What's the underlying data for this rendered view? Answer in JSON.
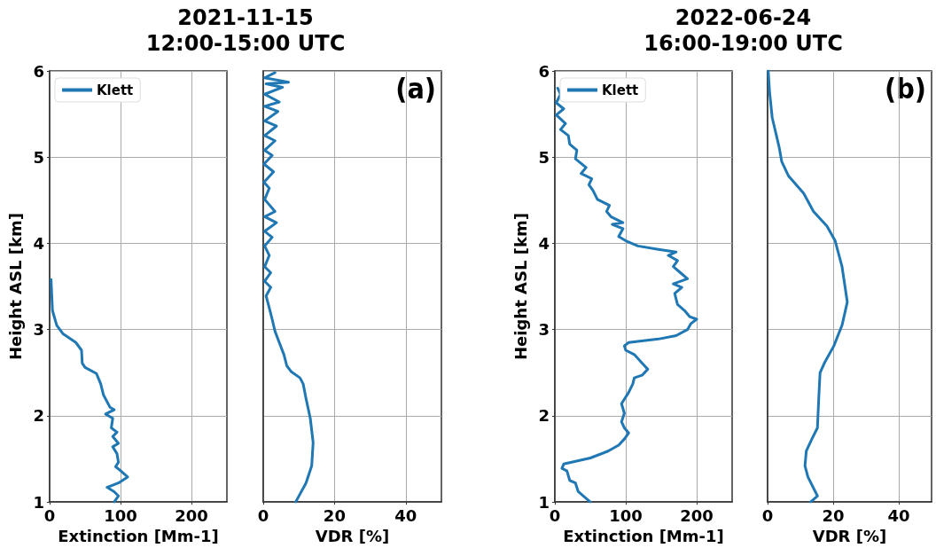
{
  "chart_data": [
    {
      "type": "line",
      "title": "2021-11-15\n12:00-15:00 UTC",
      "xlabel": "Extinction [Mm-1]",
      "ylabel": "Height ASL [km]",
      "xlim": [
        0,
        250
      ],
      "xticks": [
        0,
        100,
        200
      ],
      "ylim": [
        1,
        6
      ],
      "yticks": [
        1,
        2,
        3,
        4,
        5,
        6
      ],
      "grid": true,
      "legend": "top left",
      "series": [
        {
          "name": "Klett",
          "color": "#1f77b4",
          "x": [
            91,
            97,
            91,
            81,
            97,
            110,
            99,
            93,
            97,
            95,
            89,
            97,
            89,
            95,
            87,
            89,
            79,
            91,
            85,
            76,
            72,
            66,
            50,
            46,
            45,
            37,
            19,
            10,
            4,
            2
          ],
          "values": [
            1.0,
            1.07,
            1.12,
            1.17,
            1.22,
            1.29,
            1.37,
            1.41,
            1.46,
            1.56,
            1.64,
            1.68,
            1.76,
            1.81,
            1.86,
            1.97,
            2.02,
            2.07,
            2.1,
            2.24,
            2.37,
            2.49,
            2.56,
            2.61,
            2.76,
            2.85,
            2.95,
            3.05,
            3.22,
            3.58
          ]
        }
      ]
    },
    {
      "type": "line",
      "xlabel": "VDR [%]",
      "xlim": [
        0,
        50
      ],
      "xticks": [
        0,
        20,
        40
      ],
      "ylim": [
        1,
        6
      ],
      "yticks": [
        1,
        2,
        3,
        4,
        5,
        6
      ],
      "grid": true,
      "tick_labels": "x",
      "annotations": [
        "(a)"
      ],
      "series": [
        {
          "color": "#1f77b4",
          "x": [
            9.1,
            12,
            13.6,
            14,
            13.2,
            12,
            11.2,
            10.3,
            7.9,
            6.6,
            5.8,
            4.5,
            3.3,
            2.5,
            1.7,
            0.8,
            2.1,
            0.4,
            2.1,
            0.4,
            1.7,
            0.4,
            2.5,
            0.4,
            3.7,
            0.4,
            3.3,
            0.4,
            1.7,
            0.2,
            2.9,
            0.2,
            2.5,
            0.4,
            3.3,
            0.4,
            3.7,
            0.4,
            4.1,
            0.4,
            4.5,
            0.4,
            5.4,
            0.8,
            7.1,
            0.4,
            3.3
          ],
          "values": [
            1.0,
            1.22,
            1.42,
            1.69,
            1.97,
            2.2,
            2.37,
            2.44,
            2.51,
            2.58,
            2.71,
            2.85,
            2.98,
            3.12,
            3.25,
            3.39,
            3.49,
            3.56,
            3.66,
            3.73,
            3.86,
            3.97,
            4.07,
            4.14,
            4.24,
            4.31,
            4.37,
            4.51,
            4.64,
            4.71,
            4.83,
            4.92,
            5.02,
            5.08,
            5.19,
            5.25,
            5.36,
            5.42,
            5.53,
            5.59,
            5.64,
            5.73,
            5.81,
            5.85,
            5.87,
            5.92,
            5.98
          ]
        }
      ]
    },
    {
      "type": "line",
      "title": "2022-06-24\n16:00-19:00 UTC",
      "xlabel": "Extinction [Mm-1]",
      "ylabel": "Height ASL [km]",
      "xlim": [
        0,
        250
      ],
      "xticks": [
        0,
        100,
        200
      ],
      "ylim": [
        1,
        6
      ],
      "yticks": [
        1,
        2,
        3,
        4,
        5,
        6
      ],
      "grid": true,
      "legend": "top left",
      "series": [
        {
          "name": "Klett",
          "color": "#1f77b4",
          "x": [
            50,
            33,
            29,
            21,
            17,
            10,
            12.5,
            50,
            75,
            90,
            98,
            104,
            98,
            94,
            98,
            94,
            104,
            110,
            112,
            123,
            131,
            123,
            112,
            100,
            98,
            104,
            146,
            171,
            187,
            192,
            200,
            190,
            183,
            173,
            169,
            179,
            167,
            187,
            177,
            167,
            173,
            160,
            171,
            146,
            117,
            100,
            90,
            96,
            81,
            96,
            79,
            73,
            77,
            60,
            54,
            48,
            52,
            37,
            44,
            29,
            31,
            21,
            19,
            8,
            15,
            2,
            12.5,
            2,
            8,
            4
          ],
          "values": [
            1.0,
            1.12,
            1.22,
            1.25,
            1.36,
            1.39,
            1.44,
            1.51,
            1.59,
            1.66,
            1.73,
            1.8,
            1.86,
            1.93,
            2.03,
            2.14,
            2.27,
            2.37,
            2.44,
            2.47,
            2.54,
            2.61,
            2.71,
            2.76,
            2.81,
            2.85,
            2.89,
            2.93,
            3.0,
            3.07,
            3.12,
            3.15,
            3.22,
            3.29,
            3.42,
            3.49,
            3.53,
            3.59,
            3.66,
            3.73,
            3.8,
            3.86,
            3.9,
            3.93,
            3.97,
            4.03,
            4.08,
            4.17,
            4.22,
            4.24,
            4.31,
            4.37,
            4.44,
            4.51,
            4.61,
            4.68,
            4.75,
            4.81,
            4.88,
            4.98,
            5.08,
            5.15,
            5.25,
            5.32,
            5.39,
            5.49,
            5.56,
            5.63,
            5.73,
            5.8
          ]
        }
      ]
    },
    {
      "type": "line",
      "xlabel": "VDR [%]",
      "xlim": [
        0,
        50
      ],
      "xticks": [
        0,
        20,
        40
      ],
      "ylim": [
        1,
        6
      ],
      "yticks": [
        1,
        2,
        3,
        4,
        5,
        6
      ],
      "grid": true,
      "tick_labels": "x",
      "annotations": [
        "(b)"
      ],
      "series": [
        {
          "color": "#1f77b4",
          "x": [
            13.1,
            15.2,
            12.3,
            11.4,
            11.8,
            13.5,
            15.2,
            15.6,
            16,
            17.3,
            20.2,
            22.7,
            24.3,
            22.7,
            20.6,
            18.1,
            14,
            11,
            6.4,
            4.3,
            3.5,
            1.4,
            0.6,
            0.2
          ],
          "values": [
            1.0,
            1.07,
            1.29,
            1.42,
            1.59,
            1.73,
            1.86,
            2.2,
            2.5,
            2.61,
            2.81,
            3.05,
            3.32,
            3.73,
            4.03,
            4.2,
            4.37,
            4.58,
            4.78,
            4.95,
            5.12,
            5.46,
            5.76,
            6.0
          ]
        }
      ]
    }
  ]
}
